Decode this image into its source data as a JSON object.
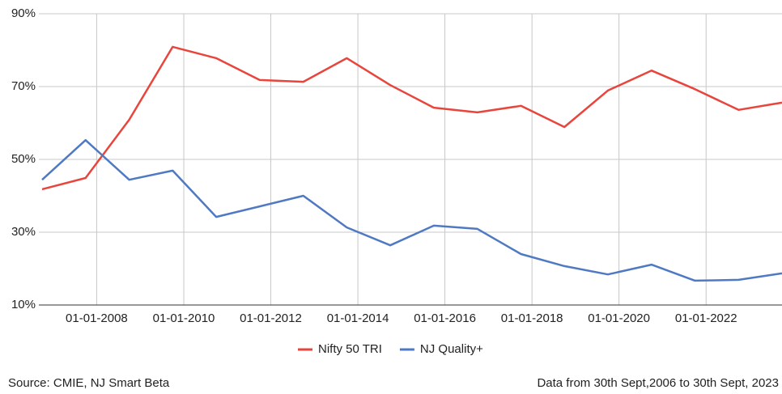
{
  "chart_data": {
    "type": "line",
    "x": [
      "2006-09-30",
      "2007-09-30",
      "2008-09-30",
      "2009-09-30",
      "2010-09-30",
      "2011-09-30",
      "2012-09-30",
      "2013-09-30",
      "2014-09-30",
      "2015-09-30",
      "2016-09-30",
      "2017-09-30",
      "2018-09-30",
      "2019-09-30",
      "2020-09-30",
      "2021-09-30",
      "2022-09-30",
      "2023-09-30"
    ],
    "series": [
      {
        "name": "Nifty 50 TRI",
        "color": "#e8453c",
        "values": [
          41.8,
          44.9,
          60.9,
          80.9,
          77.8,
          71.8,
          71.3,
          77.8,
          70.4,
          64.2,
          62.9,
          64.7,
          58.9,
          68.9,
          74.4,
          69.3,
          63.6,
          65.6
        ]
      },
      {
        "name": "NJ Quality+",
        "color": "#4f7ac3",
        "values": [
          44.4,
          55.3,
          44.4,
          46.9,
          34.2,
          37.1,
          40.0,
          31.3,
          26.4,
          31.8,
          30.9,
          24.0,
          20.7,
          18.4,
          21.1,
          16.7,
          16.9,
          18.7
        ]
      }
    ],
    "xlim": [
      "2006-09-30",
      "2023-09-30"
    ],
    "xticks": [
      {
        "value": "2008-01-01",
        "label": "01-01-2008"
      },
      {
        "value": "2010-01-01",
        "label": "01-01-2010"
      },
      {
        "value": "2012-01-01",
        "label": "01-01-2012"
      },
      {
        "value": "2014-01-01",
        "label": "01-01-2014"
      },
      {
        "value": "2016-01-01",
        "label": "01-01-2016"
      },
      {
        "value": "2018-01-01",
        "label": "01-01-2018"
      },
      {
        "value": "2020-01-01",
        "label": "01-01-2020"
      },
      {
        "value": "2022-01-01",
        "label": "01-01-2022"
      }
    ],
    "ylim": [
      10,
      90
    ],
    "yticks": [
      {
        "value": 10,
        "label": "10%"
      },
      {
        "value": 30,
        "label": "30%"
      },
      {
        "value": 50,
        "label": "50%"
      },
      {
        "value": 70,
        "label": "70%"
      },
      {
        "value": 90,
        "label": "90%"
      }
    ],
    "grid": true,
    "legend": "bottom",
    "source": "Source: CMIE, NJ Smart Beta",
    "note": "Data from 30th Sept,2006 to 30th Sept, 2023"
  }
}
